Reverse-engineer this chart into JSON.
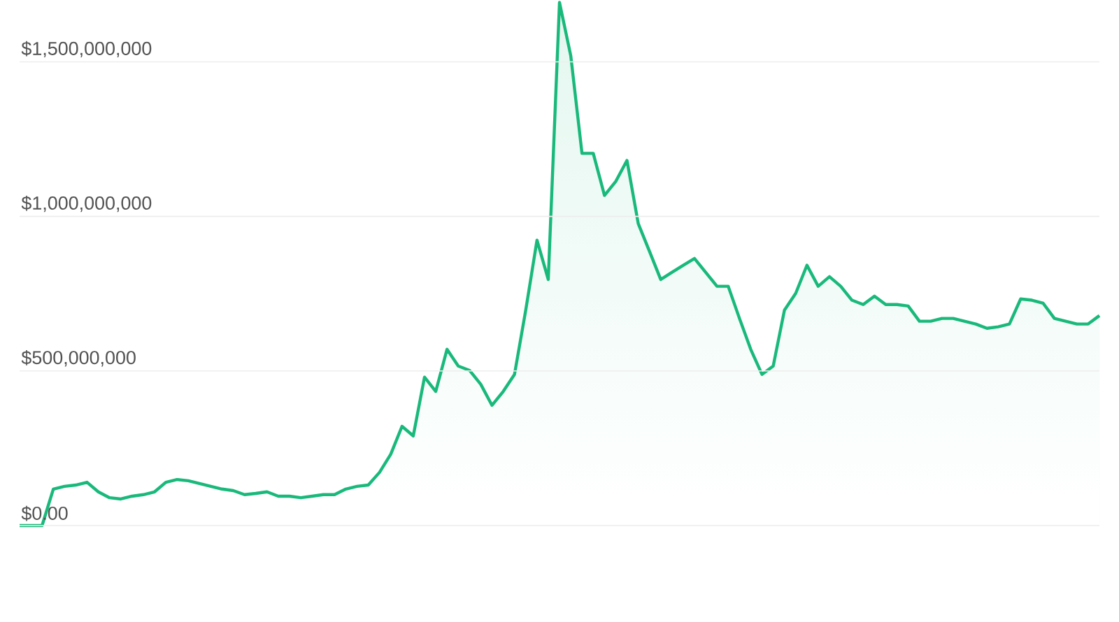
{
  "chart_data": {
    "type": "area",
    "color": "#19b97b",
    "grid": "y",
    "tick_labels": "y",
    "categories": [
      null,
      null,
      null,
      null,
      null,
      null,
      null,
      null,
      null,
      null,
      null,
      null,
      null,
      null,
      null,
      null,
      null,
      null,
      null,
      null,
      null,
      null,
      null,
      null,
      null,
      null,
      null,
      null,
      null,
      null,
      null,
      null,
      null,
      null,
      null,
      null,
      null,
      null,
      null,
      null,
      null,
      null,
      null,
      null,
      null,
      null,
      null,
      null,
      null,
      null,
      null,
      null,
      null,
      null,
      null,
      null,
      null,
      null,
      null,
      null,
      null,
      null,
      null,
      null,
      null,
      null,
      null,
      null,
      null,
      null,
      null,
      null,
      null,
      null,
      null,
      null,
      null,
      null,
      null,
      null,
      null,
      null,
      null,
      null,
      null,
      null,
      null,
      null,
      null,
      null,
      null,
      null,
      null,
      null,
      null,
      null,
      null
    ],
    "values": [
      0,
      0,
      0,
      118000000,
      127000000,
      131000000,
      140000000,
      109000000,
      90000000,
      86000000,
      95000000,
      100000000,
      109000000,
      140000000,
      149000000,
      145000000,
      136000000,
      127000000,
      118000000,
      113000000,
      100000000,
      104000000,
      109000000,
      95000000,
      95000000,
      90000000,
      95000000,
      100000000,
      100000000,
      118000000,
      127000000,
      131000000,
      172000000,
      231000000,
      321000000,
      290000000,
      480000000,
      434000000,
      570000000,
      516000000,
      502000000,
      457000000,
      389000000,
      434000000,
      489000000,
      697000000,
      923000000,
      796000000,
      1692000000,
      1520000000,
      1204000000,
      1204000000,
      1068000000,
      1113000000,
      1181000000,
      977000000,
      887000000,
      796000000,
      819000000,
      842000000,
      864000000,
      819000000,
      774000000,
      774000000,
      670000000,
      570000000,
      489000000,
      516000000,
      697000000,
      751000000,
      842000000,
      774000000,
      805000000,
      774000000,
      729000000,
      715000000,
      742000000,
      715000000,
      715000000,
      710000000,
      661000000,
      661000000,
      670000000,
      670000000,
      661000000,
      652000000,
      638000000,
      643000000,
      652000000,
      733000000,
      729000000,
      719000000,
      670000000,
      661000000,
      652000000,
      652000000,
      679000000
    ],
    "ylim": [
      0,
      1700000000
    ],
    "yticks": [
      {
        "value": 0,
        "label": "$0.00"
      },
      {
        "value": 500000000,
        "label": "$500,000,000"
      },
      {
        "value": 1000000000,
        "label": "$1,000,000,000"
      },
      {
        "value": 1500000000,
        "label": "$1,500,000,000"
      }
    ]
  }
}
